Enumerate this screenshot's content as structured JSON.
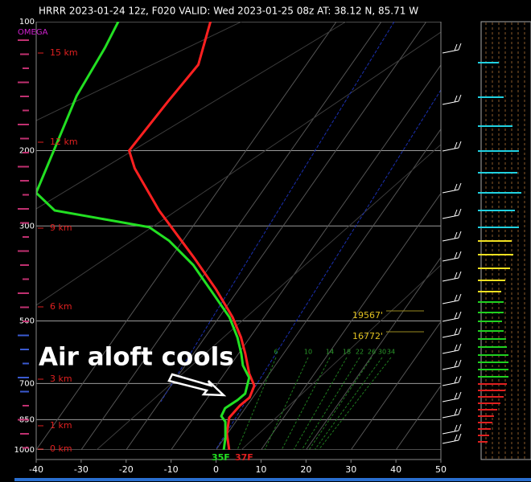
{
  "chart_data": {
    "type": "skewt",
    "title": "HRRR 2023-01-24 12z, F020  VALID: Wed 2023-01-25 08z  AT: 38.12 N, 85.71 W",
    "annotation": "Air aloft cools",
    "omega_label": "OMEGA",
    "height_labels": [
      "15 km",
      "12 km",
      "9 km",
      "6 km",
      "3 km",
      "1 km",
      "0 km"
    ],
    "level_labels": [
      "19567'",
      "16772'"
    ],
    "surface_labels": [
      "35F",
      "37F"
    ],
    "mixing_ratio_labels": [
      "6",
      "10",
      "14",
      "18",
      "22",
      "26",
      "30",
      "34"
    ],
    "xlim": [
      -40,
      50
    ],
    "xticks": [
      -40,
      -30,
      -20,
      -10,
      0,
      10,
      20,
      30,
      40,
      50
    ],
    "ylim": [
      1000,
      100
    ],
    "yticks": [
      100,
      200,
      300,
      500,
      700,
      850,
      1000
    ],
    "log_y": true,
    "grid": true,
    "series": [
      {
        "color": "#ff2020",
        "pressure": [
          100,
          126,
          153,
          200,
          220,
          276,
          355,
          422,
          490,
          546,
          596,
          664,
          708,
          755,
          788,
          841,
          917,
          1000
        ],
        "temperature": [
          -68,
          -64,
          -65,
          -66,
          -62,
          -50,
          -35,
          -25,
          -17,
          -12,
          -8.5,
          -4.5,
          -1.5,
          -0.7,
          -1.6,
          -2.1,
          -0.1,
          2.9
        ]
      },
      {
        "color": "#22e022",
        "pressure": [
          100,
          115,
          149,
          194,
          251,
          276,
          302,
          325,
          370,
          431,
          490,
          546,
          596,
          635,
          678,
          739,
          765,
          799,
          834,
          860,
          937,
          1000
        ],
        "temperature": [
          -88.5,
          -87.4,
          -86.2,
          -83.1,
          -80.1,
          -73.2,
          -49.6,
          -43,
          -33.9,
          -25.1,
          -17.7,
          -12.8,
          -9.4,
          -7.2,
          -3.9,
          -2.3,
          -3,
          -4.5,
          -4.1,
          -2.3,
          0.2,
          1.7
        ]
      }
    ]
  }
}
